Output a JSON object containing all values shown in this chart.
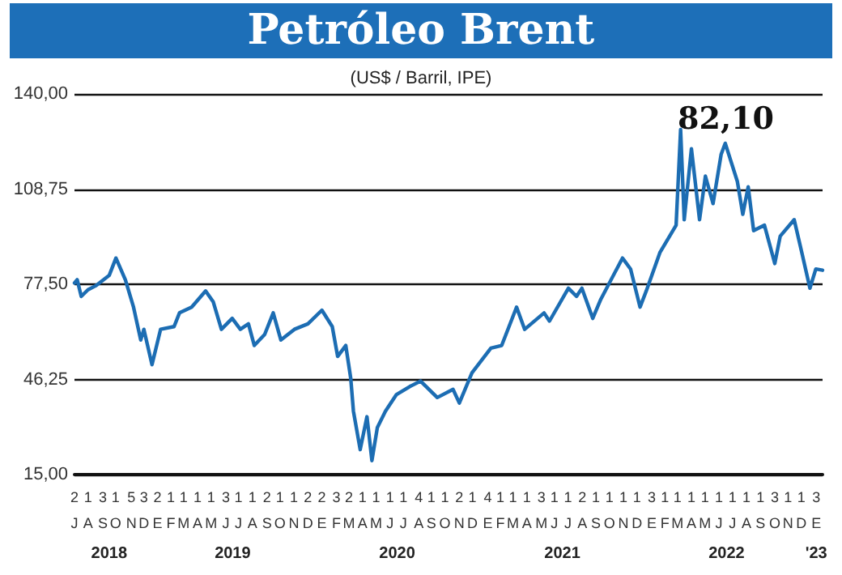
{
  "chart_data": {
    "type": "line",
    "title": "Petróleo Brent",
    "subtitle": "(US$ / Barril, IPE)",
    "annotations": [
      "82,10",
      "2018",
      "2019",
      "2020",
      "2021",
      "2022",
      "'23"
    ],
    "x": [
      "2018-07-02",
      "2018-07-08",
      "2018-07-17",
      "2018-08-01",
      "2018-08-18",
      "2018-09-17",
      "2018-10-02",
      "2018-10-23",
      "2018-11-10",
      "2018-11-26",
      "2018-12-03",
      "2018-12-21",
      "2019-01-09",
      "2019-02-08",
      "2019-02-20",
      "2019-03-19",
      "2019-04-19",
      "2019-05-06",
      "2019-05-24",
      "2019-06-17",
      "2019-07-05",
      "2019-07-23",
      "2019-08-05",
      "2019-08-28",
      "2019-09-16",
      "2019-10-03",
      "2019-11-02",
      "2019-12-02",
      "2020-01-02",
      "2020-01-25",
      "2020-02-06",
      "2020-02-24",
      "2020-03-06",
      "2020-03-12",
      "2020-03-27",
      "2020-04-11",
      "2020-04-22",
      "2020-05-04",
      "2020-05-22",
      "2020-06-15",
      "2020-07-15",
      "2020-08-08",
      "2020-09-14",
      "2020-10-19",
      "2020-11-02",
      "2020-11-30",
      "2021-01-11",
      "2021-02-04",
      "2021-03-09",
      "2021-03-27",
      "2021-05-09",
      "2021-05-21",
      "2021-07-02",
      "2021-07-20",
      "2021-08-01",
      "2021-08-25",
      "2021-09-12",
      "2021-10-30",
      "2021-11-17",
      "2021-12-08",
      "2021-12-22",
      "2022-01-21",
      "2022-02-26",
      "2022-03-08",
      "2022-03-16",
      "2022-04-01",
      "2022-04-19",
      "2022-05-02",
      "2022-05-19",
      "2022-06-06",
      "2022-06-15",
      "2022-07-12",
      "2022-07-24",
      "2022-08-05",
      "2022-08-17",
      "2022-09-10",
      "2022-10-03",
      "2022-10-15",
      "2022-11-15",
      "2022-12-02",
      "2022-12-20",
      "2023-01-02",
      "2023-01-17"
    ],
    "series": [
      {
        "color": "#1c6db3",
        "values": [
          77.9,
          79,
          73.5,
          75.7,
          77,
          80.4,
          86.1,
          78.9,
          70,
          59.2,
          62.7,
          51.1,
          62.7,
          63.6,
          68.1,
          70,
          75.3,
          71.7,
          62.7,
          66.3,
          62.7,
          64.5,
          57.4,
          61,
          68.1,
          59.2,
          62.7,
          64.5,
          69,
          63.6,
          53.8,
          57.4,
          46.6,
          35.8,
          23.2,
          34,
          19.6,
          30.4,
          35.8,
          41.2,
          43.9,
          45.7,
          40.3,
          43,
          38.5,
          48.4,
          56.5,
          57.4,
          70,
          62.7,
          68.1,
          65.4,
          76.2,
          73.5,
          76.2,
          66.3,
          72.6,
          86.1,
          82.5,
          70,
          75.4,
          87.9,
          96.9,
          128.3,
          98.7,
          122,
          98.7,
          113,
          104,
          120.2,
          123.8,
          111.2,
          100.5,
          109.5,
          95.1,
          96.9,
          84.3,
          93.3,
          98.7,
          87.9,
          76.2,
          82.5,
          82.1
        ]
      }
    ],
    "xlim": [
      "2018-07-02",
      "2023-01-17"
    ],
    "xticks": [
      {
        "value": "2018-07-02",
        "label": "2\nJ"
      },
      {
        "value": "2018-08-01",
        "label": "1\nA"
      },
      {
        "value": "2018-09-03",
        "label": "3\nS"
      },
      {
        "value": "2018-10-01",
        "label": "1\nO"
      },
      {
        "value": "2018-11-05",
        "label": "5\nN"
      },
      {
        "value": "2018-12-03",
        "label": "3\nD"
      },
      {
        "value": "2019-01-02",
        "label": "2\nE"
      },
      {
        "value": "2019-02-01",
        "label": "1\nF"
      },
      {
        "value": "2019-03-01",
        "label": "1\nM"
      },
      {
        "value": "2019-04-01",
        "label": "1\nA"
      },
      {
        "value": "2019-05-01",
        "label": "1\nM"
      },
      {
        "value": "2019-06-03",
        "label": "3\nJ"
      },
      {
        "value": "2019-07-01",
        "label": "1\nJ"
      },
      {
        "value": "2019-08-01",
        "label": "1\nA"
      },
      {
        "value": "2019-09-02",
        "label": "2\nS"
      },
      {
        "value": "2019-10-01",
        "label": "1\nO"
      },
      {
        "value": "2019-11-01",
        "label": "1\nN"
      },
      {
        "value": "2019-12-02",
        "label": "2\nD"
      },
      {
        "value": "2020-01-02",
        "label": "2\nE"
      },
      {
        "value": "2020-02-03",
        "label": "3\nF"
      },
      {
        "value": "2020-03-02",
        "label": "2\nM"
      },
      {
        "value": "2020-04-01",
        "label": "1\nA"
      },
      {
        "value": "2020-05-01",
        "label": "1\nM"
      },
      {
        "value": "2020-06-01",
        "label": "1\nJ"
      },
      {
        "value": "2020-07-01",
        "label": "1\nJ"
      },
      {
        "value": "2020-08-04",
        "label": "4\nA"
      },
      {
        "value": "2020-09-01",
        "label": "1\nS"
      },
      {
        "value": "2020-10-01",
        "label": "1\nO"
      },
      {
        "value": "2020-11-02",
        "label": "2\nN"
      },
      {
        "value": "2020-12-01",
        "label": "1\nD"
      },
      {
        "value": "2021-01-04",
        "label": "4\nE"
      },
      {
        "value": "2021-02-01",
        "label": "1\nF"
      },
      {
        "value": "2021-03-01",
        "label": "1\nM"
      },
      {
        "value": "2021-04-01",
        "label": "1\nA"
      },
      {
        "value": "2021-05-03",
        "label": "3\nM"
      },
      {
        "value": "2021-06-01",
        "label": "1\nJ"
      },
      {
        "value": "2021-07-01",
        "label": "1\nJ"
      },
      {
        "value": "2021-08-02",
        "label": "2\nA"
      },
      {
        "value": "2021-09-01",
        "label": "1\nS"
      },
      {
        "value": "2021-10-01",
        "label": "1\nO"
      },
      {
        "value": "2021-11-01",
        "label": "1\nN"
      },
      {
        "value": "2021-12-01",
        "label": "1\nD"
      },
      {
        "value": "2022-01-03",
        "label": "3\nE"
      },
      {
        "value": "2022-02-01",
        "label": "1\nF"
      },
      {
        "value": "2022-03-01",
        "label": "1\nM"
      },
      {
        "value": "2022-04-01",
        "label": "1\nA"
      },
      {
        "value": "2022-05-01",
        "label": "1\nM"
      },
      {
        "value": "2022-06-01",
        "label": "1\nJ"
      },
      {
        "value": "2022-07-01",
        "label": "1\nJ"
      },
      {
        "value": "2022-08-01",
        "label": "1\nA"
      },
      {
        "value": "2022-09-01",
        "label": "1\nS"
      },
      {
        "value": "2022-10-03",
        "label": "3\nO"
      },
      {
        "value": "2022-11-01",
        "label": "1\nN"
      },
      {
        "value": "2022-12-01",
        "label": "1\nD"
      },
      {
        "value": "2023-01-03",
        "label": "3\nE"
      }
    ],
    "ylim": [
      15,
      140
    ],
    "yticks": [
      {
        "value": 15,
        "label": "15,00"
      },
      {
        "value": 46.25,
        "label": "46,25"
      },
      {
        "value": 77.5,
        "label": "77,50"
      },
      {
        "value": 108.75,
        "label": "108,75"
      },
      {
        "value": 140,
        "label": "140,00"
      }
    ],
    "grid": "y",
    "marker": "none",
    "line_style": "solid"
  }
}
